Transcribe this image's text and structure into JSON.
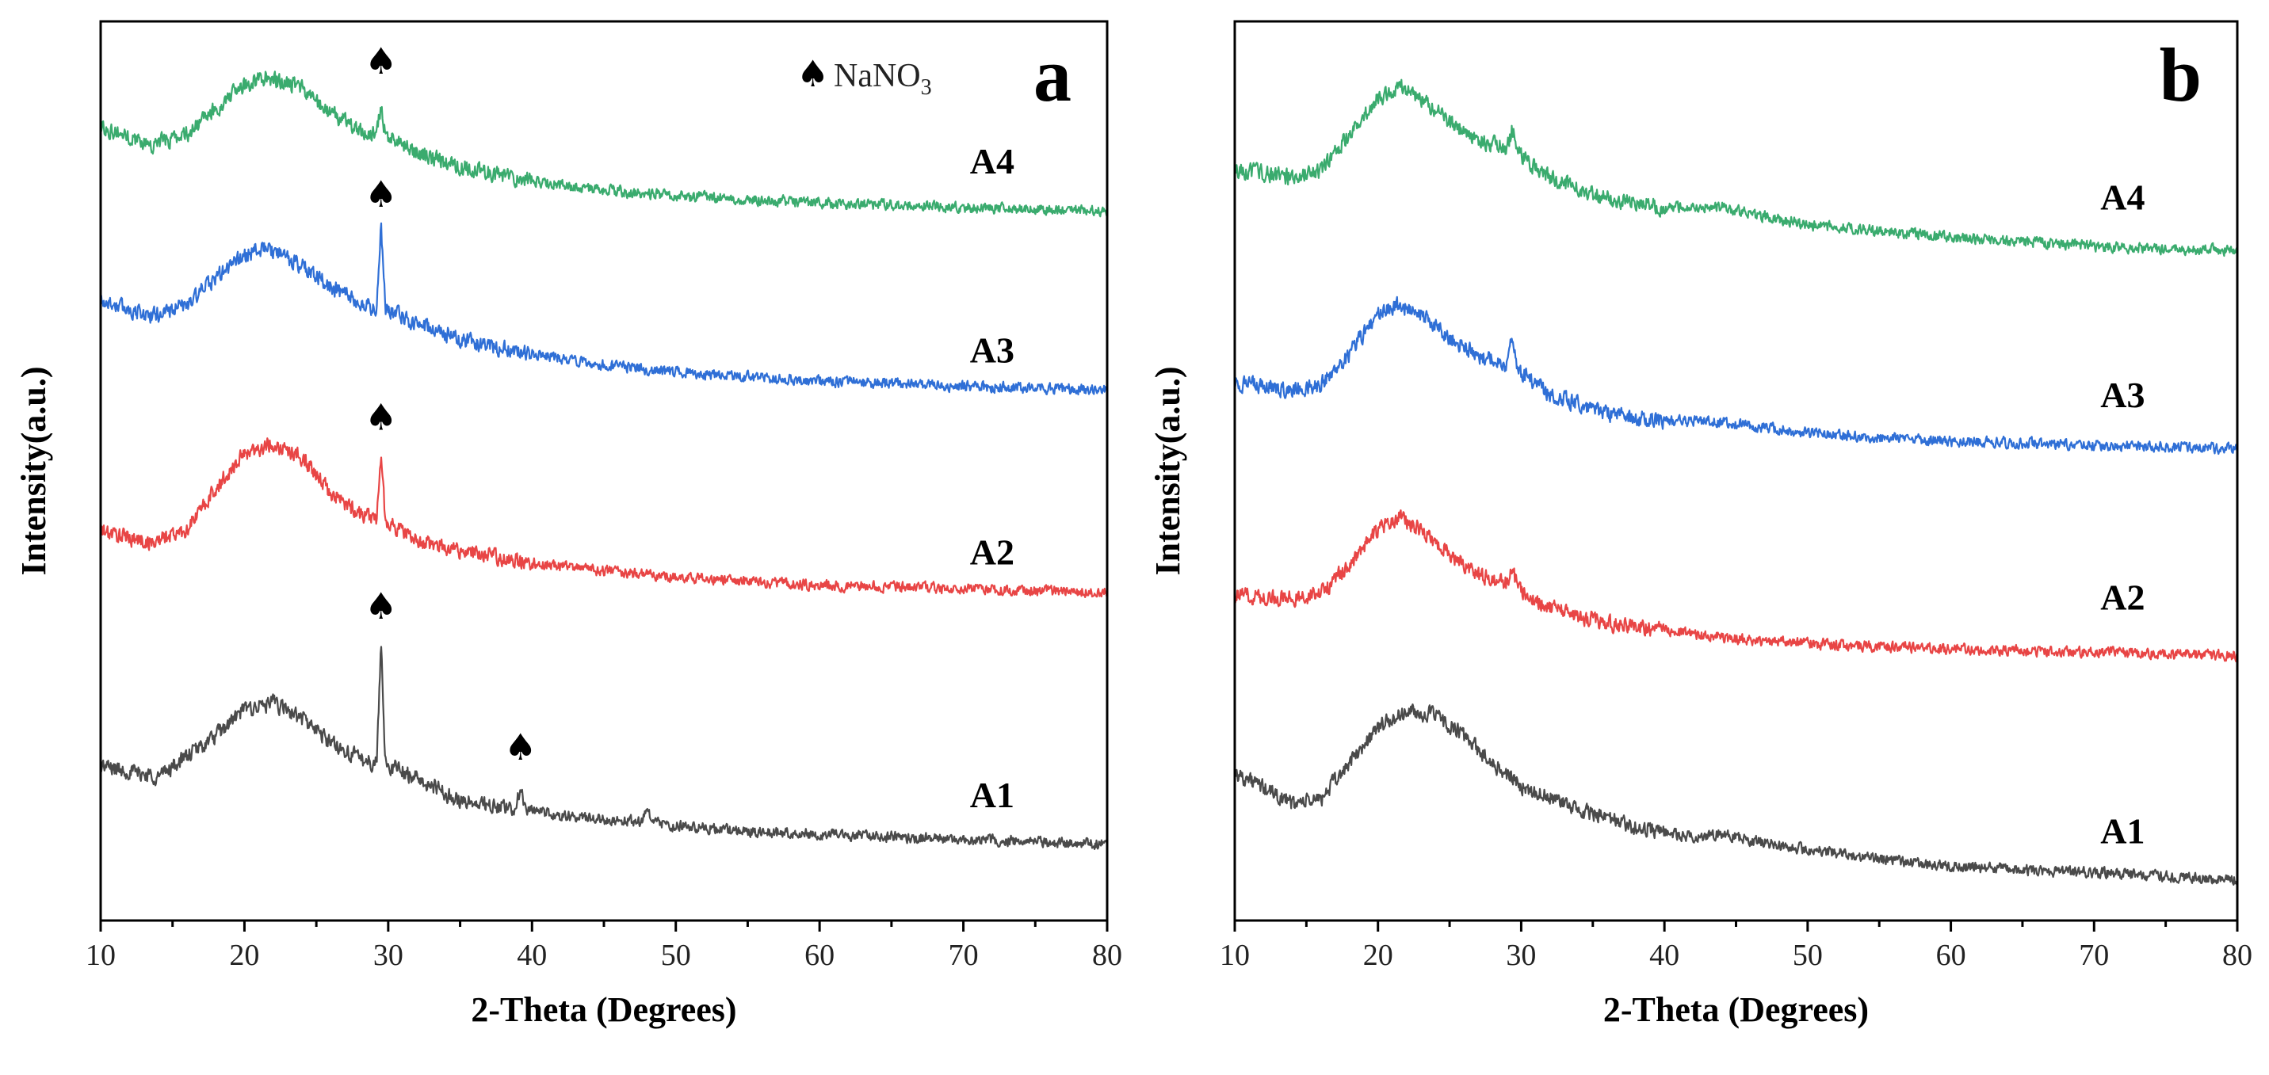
{
  "colors": {
    "A1": "#4a4a4a",
    "A2": "#e84545",
    "A3": "#2f6fd6",
    "A4": "#3aab6e"
  },
  "chart_data": [
    {
      "panel": "a",
      "type": "line",
      "xlabel": "2-Theta (Degrees)",
      "ylabel": "Intensity(a.u.)",
      "xlim": [
        10,
        80
      ],
      "xticks": [
        10,
        20,
        30,
        40,
        50,
        60,
        70,
        80
      ],
      "ylim": [
        0,
        100
      ],
      "yticks_shown": false,
      "legend": {
        "symbol": "♠",
        "text": "NaNO",
        "subscript": "3",
        "position": "top-right"
      },
      "series": [
        {
          "name": "A1",
          "offset": 8.5,
          "label_at": [
            72,
            14
          ],
          "points": [
            [
              10,
              17.2
            ],
            [
              14,
              16.0
            ],
            [
              18,
              20.5
            ],
            [
              20,
              23.5
            ],
            [
              22,
              24.2
            ],
            [
              24,
              22.5
            ],
            [
              26,
              19.8
            ],
            [
              28,
              18.0
            ],
            [
              29.2,
              17.5
            ],
            [
              29.5,
              31.0
            ],
            [
              29.8,
              17.5
            ],
            [
              32,
              15.8
            ],
            [
              35,
              13.3
            ],
            [
              38.8,
              12.3
            ],
            [
              39.2,
              15.0
            ],
            [
              39.6,
              12.3
            ],
            [
              42,
              11.6
            ],
            [
              47.5,
              11.0
            ],
            [
              48,
              12.1
            ],
            [
              48.5,
              10.8
            ],
            [
              55,
              9.9
            ],
            [
              65,
              9.3
            ],
            [
              80,
              8.5
            ]
          ],
          "markers": [
            [
              29.5,
              35.0
            ],
            [
              39.2,
              19.3
            ]
          ]
        },
        {
          "name": "A2",
          "offset": 36.5,
          "label_at": [
            72,
            41
          ],
          "points": [
            [
              10,
              43.3
            ],
            [
              13.5,
              42.0
            ],
            [
              16,
              43.5
            ],
            [
              18,
              48.0
            ],
            [
              20,
              52.0
            ],
            [
              22,
              53.0
            ],
            [
              24,
              51.5
            ],
            [
              26,
              47.5
            ],
            [
              28,
              45.3
            ],
            [
              29.2,
              44.8
            ],
            [
              29.5,
              51.5
            ],
            [
              29.8,
              44.5
            ],
            [
              32,
              42.2
            ],
            [
              36,
              40.8
            ],
            [
              40,
              39.8
            ],
            [
              45,
              38.9
            ],
            [
              50,
              38.2
            ],
            [
              60,
              37.3
            ],
            [
              70,
              36.9
            ],
            [
              80,
              36.5
            ]
          ],
          "markers": [
            [
              29.5,
              56.0
            ]
          ]
        },
        {
          "name": "A3",
          "offset": 59,
          "label_at": [
            72,
            63.5
          ],
          "points": [
            [
              10,
              69.0
            ],
            [
              13.5,
              67.2
            ],
            [
              16,
              68.5
            ],
            [
              18,
              71.5
            ],
            [
              20,
              74.0
            ],
            [
              21.5,
              74.8
            ],
            [
              24,
              72.8
            ],
            [
              26,
              70.5
            ],
            [
              28,
              68.5
            ],
            [
              29.2,
              68.1
            ],
            [
              29.5,
              77.0
            ],
            [
              29.8,
              68.0
            ],
            [
              32,
              66.3
            ],
            [
              36,
              64.2
            ],
            [
              40,
              63.0
            ],
            [
              45,
              61.8
            ],
            [
              50,
              61.0
            ],
            [
              60,
              60.0
            ],
            [
              70,
              59.4
            ],
            [
              80,
              59.0
            ]
          ],
          "markers": [
            [
              29.5,
              80.8
            ]
          ]
        },
        {
          "name": "A4",
          "offset": 79,
          "label_at": [
            72,
            84.5
          ],
          "points": [
            [
              10,
              88.3
            ],
            [
              13.5,
              86.3
            ],
            [
              16,
              87.5
            ],
            [
              18,
              90.2
            ],
            [
              20,
              93.0
            ],
            [
              21.5,
              93.8
            ],
            [
              24,
              92.5
            ],
            [
              26,
              89.8
            ],
            [
              28,
              87.8
            ],
            [
              29.2,
              87.4
            ],
            [
              29.5,
              90.8
            ],
            [
              29.8,
              87.3
            ],
            [
              32,
              85.3
            ],
            [
              36,
              83.4
            ],
            [
              40,
              82.3
            ],
            [
              45,
              81.2
            ],
            [
              50,
              80.6
            ],
            [
              60,
              79.8
            ],
            [
              70,
              79.3
            ],
            [
              80,
              79.0
            ]
          ],
          "markers": [
            [
              29.5,
              95.6
            ]
          ]
        }
      ]
    },
    {
      "panel": "b",
      "type": "line",
      "xlabel": "2-Theta (Degrees)",
      "ylabel": "Intensity(a.u.)",
      "xlim": [
        10,
        80
      ],
      "xticks": [
        10,
        20,
        30,
        40,
        50,
        60,
        70,
        80
      ],
      "ylim": [
        0,
        100
      ],
      "yticks_shown": false,
      "series": [
        {
          "name": "A1",
          "offset": 4.5,
          "label_at": [
            72,
            10
          ],
          "points": [
            [
              10,
              16.5
            ],
            [
              14,
              13.0
            ],
            [
              16,
              13.5
            ],
            [
              18,
              17.5
            ],
            [
              20,
              21.5
            ],
            [
              22,
              23.2
            ],
            [
              24,
              22.8
            ],
            [
              26,
              20.5
            ],
            [
              28,
              17.5
            ],
            [
              30,
              15.0
            ],
            [
              34,
              12.3
            ],
            [
              38,
              10.3
            ],
            [
              42,
              9.3
            ],
            [
              44,
              9.7
            ],
            [
              46,
              8.9
            ],
            [
              50,
              7.9
            ],
            [
              55,
              6.9
            ],
            [
              60,
              6.0
            ],
            [
              70,
              5.3
            ],
            [
              80,
              4.5
            ]
          ],
          "markers": []
        },
        {
          "name": "A2",
          "offset": 29.5,
          "label_at": [
            72,
            36
          ],
          "points": [
            [
              10,
              36.2
            ],
            [
              14,
              35.8
            ],
            [
              16,
              36.4
            ],
            [
              18,
              39.5
            ],
            [
              20,
              43.5
            ],
            [
              21.5,
              44.8
            ],
            [
              23,
              43.5
            ],
            [
              25,
              40.8
            ],
            [
              27,
              38.5
            ],
            [
              29,
              37.5
            ],
            [
              29.4,
              38.8
            ],
            [
              29.8,
              37.0
            ],
            [
              32,
              34.8
            ],
            [
              36,
              33.0
            ],
            [
              40,
              32.3
            ],
            [
              45,
              31.3
            ],
            [
              50,
              30.8
            ],
            [
              60,
              30.2
            ],
            [
              70,
              29.8
            ],
            [
              80,
              29.5
            ]
          ],
          "markers": []
        },
        {
          "name": "A3",
          "offset": 52.5,
          "label_at": [
            72,
            58.5
          ],
          "points": [
            [
              10,
              59.8
            ],
            [
              14,
              59.0
            ],
            [
              16,
              59.6
            ],
            [
              18,
              63.0
            ],
            [
              20,
              67.5
            ],
            [
              21.5,
              68.5
            ],
            [
              23,
              67.3
            ],
            [
              25,
              64.8
            ],
            [
              27,
              62.8
            ],
            [
              29,
              61.8
            ],
            [
              29.4,
              64.8
            ],
            [
              29.8,
              61.2
            ],
            [
              32,
              58.5
            ],
            [
              36,
              56.3
            ],
            [
              40,
              55.5
            ],
            [
              44,
              55.5
            ],
            [
              46,
              55.0
            ],
            [
              50,
              54.2
            ],
            [
              60,
              53.3
            ],
            [
              70,
              52.9
            ],
            [
              80,
              52.5
            ]
          ],
          "markers": []
        },
        {
          "name": "A4",
          "offset": 74.5,
          "label_at": [
            72,
            80.5
          ],
          "points": [
            [
              10,
              83.5
            ],
            [
              14,
              82.7
            ],
            [
              16,
              83.4
            ],
            [
              18,
              87.5
            ],
            [
              20,
              91.5
            ],
            [
              21.5,
              92.8
            ],
            [
              23,
              91.5
            ],
            [
              25,
              88.8
            ],
            [
              27,
              86.8
            ],
            [
              29,
              85.8
            ],
            [
              29.4,
              88.2
            ],
            [
              29.8,
              85.3
            ],
            [
              32,
              82.5
            ],
            [
              36,
              80.3
            ],
            [
              40,
              79.3
            ],
            [
              44,
              79.4
            ],
            [
              46,
              78.6
            ],
            [
              50,
              77.4
            ],
            [
              60,
              76.0
            ],
            [
              70,
              75.0
            ],
            [
              80,
              74.5
            ]
          ],
          "markers": []
        }
      ]
    }
  ]
}
